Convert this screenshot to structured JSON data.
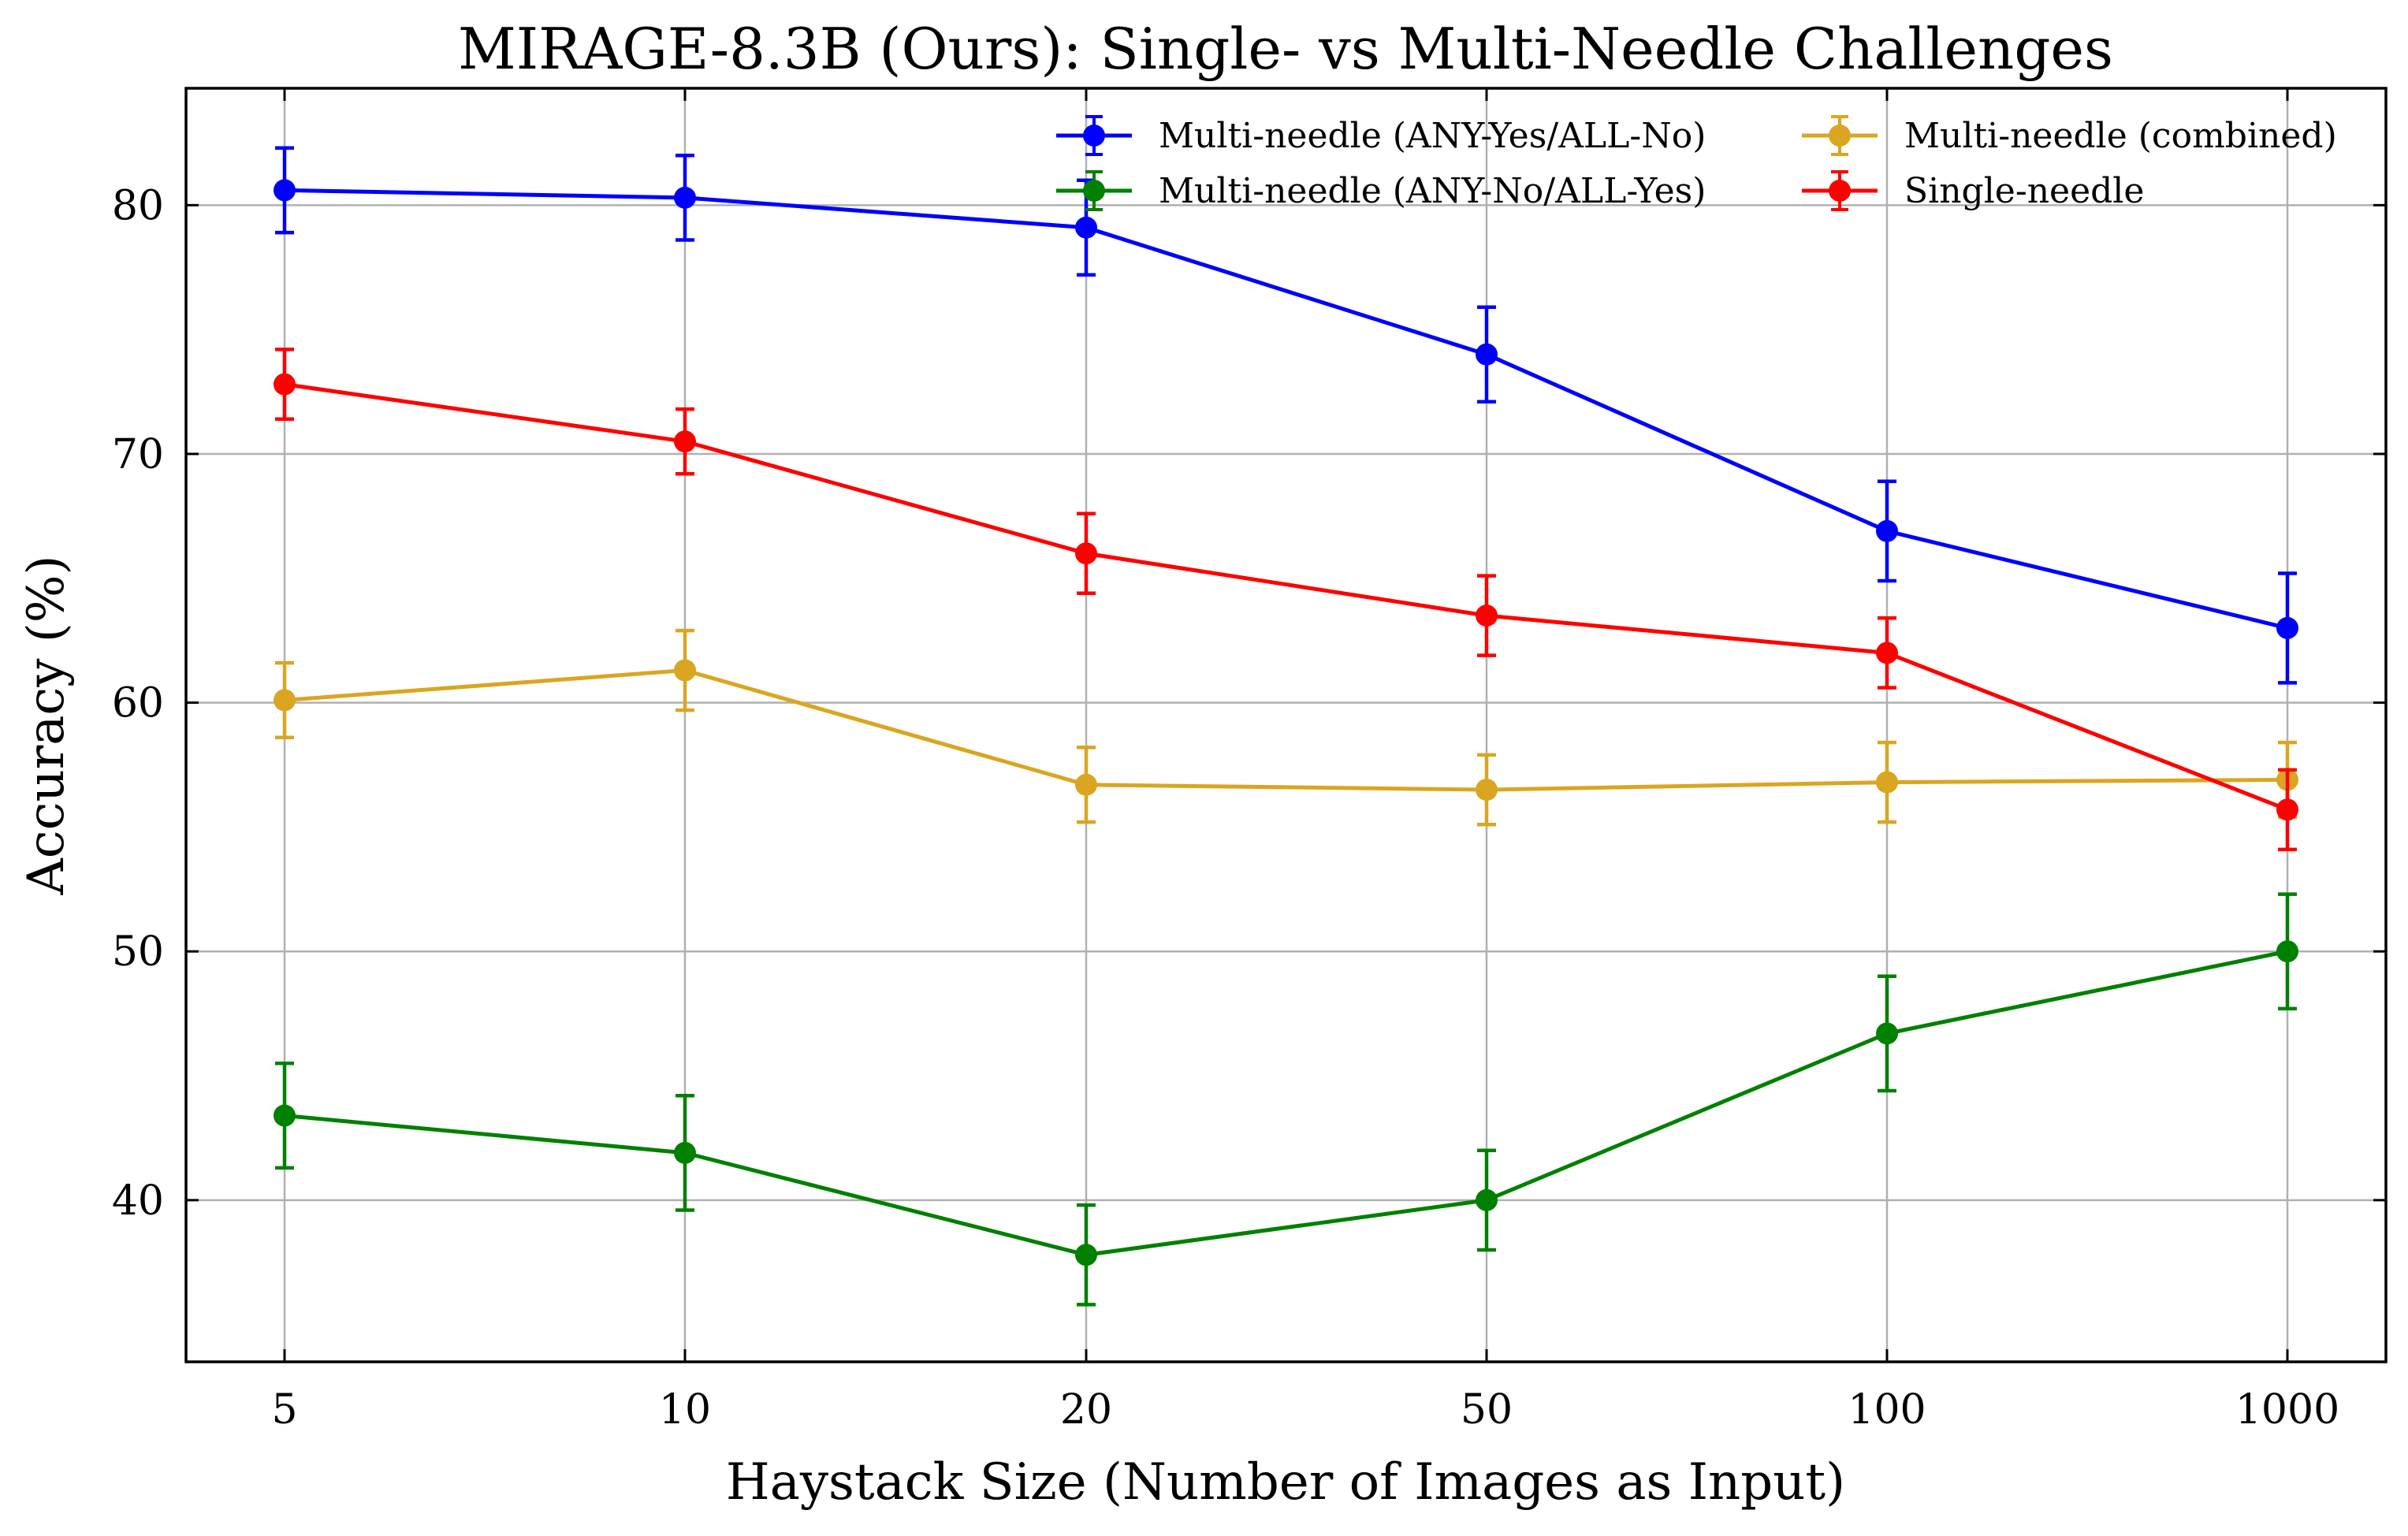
{
  "chart_data": {
    "type": "line",
    "title": "MIRAGE-8.3B (Ours): Single- vs Multi-Needle Challenges",
    "xlabel": "Haystack Size (Number of Images as Input)",
    "ylabel": "Accuracy (%)",
    "categories": [
      "5",
      "10",
      "20",
      "50",
      "100",
      "1000"
    ],
    "ylim": [
      33.5,
      84.7
    ],
    "yticks": [
      40,
      50,
      60,
      70,
      80
    ],
    "grid": true,
    "legend_position": "top-right",
    "series": [
      {
        "name": "Multi-needle (ANY-Yes/ALL-No)",
        "color": "#0000ff",
        "values": [
          80.6,
          80.3,
          79.1,
          74.0,
          66.9,
          63.0
        ],
        "errors": [
          1.7,
          1.7,
          1.9,
          1.9,
          2.0,
          2.2
        ]
      },
      {
        "name": "Multi-needle (ANY-No/ALL-Yes)",
        "color": "#008000",
        "values": [
          43.4,
          41.9,
          37.8,
          40.0,
          46.7,
          50.0
        ],
        "errors": [
          2.1,
          2.3,
          2.0,
          2.0,
          2.3,
          2.3
        ]
      },
      {
        "name": "Multi-needle (combined)",
        "color": "#daa520",
        "values": [
          60.1,
          61.3,
          56.7,
          56.5,
          56.8,
          56.9
        ],
        "errors": [
          1.5,
          1.6,
          1.5,
          1.4,
          1.6,
          1.5
        ]
      },
      {
        "name": "Single-needle",
        "color": "#ff0000",
        "values": [
          72.8,
          70.5,
          66.0,
          63.5,
          62.0,
          55.7
        ],
        "errors": [
          1.4,
          1.3,
          1.6,
          1.6,
          1.4,
          1.6
        ]
      }
    ]
  }
}
